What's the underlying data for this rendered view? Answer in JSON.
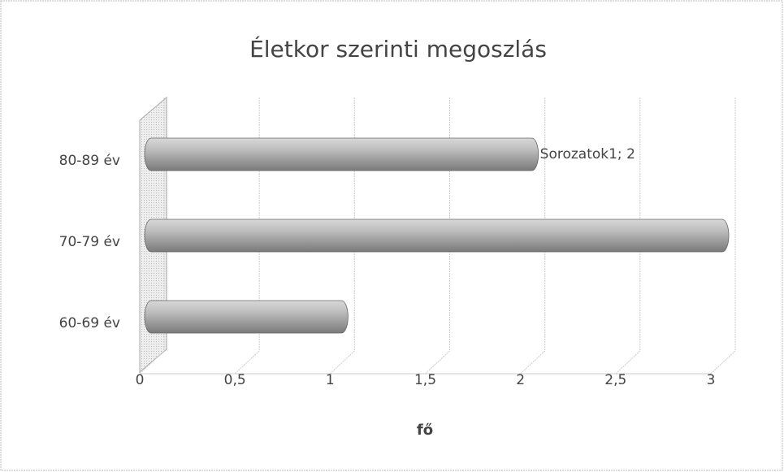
{
  "chart_data": {
    "type": "bar",
    "orientation": "horizontal",
    "title": "Életkor szerinti megoszlás",
    "categories": [
      "60-69 év",
      "70-79 év",
      "80-89 év"
    ],
    "values": [
      1,
      3,
      2
    ],
    "value_labels": [
      null,
      null,
      "Sorozatok1; 2"
    ],
    "color": "#a6a6a6",
    "xlabel": "fő",
    "xlim": [
      0,
      3
    ],
    "xticks": [
      0,
      {
        "value": 0.5,
        "label": "0,5"
      },
      1,
      {
        "value": 1.5,
        "label": "1,5"
      },
      2,
      {
        "value": 2.5,
        "label": "2,5"
      },
      3
    ],
    "grid": true
  }
}
